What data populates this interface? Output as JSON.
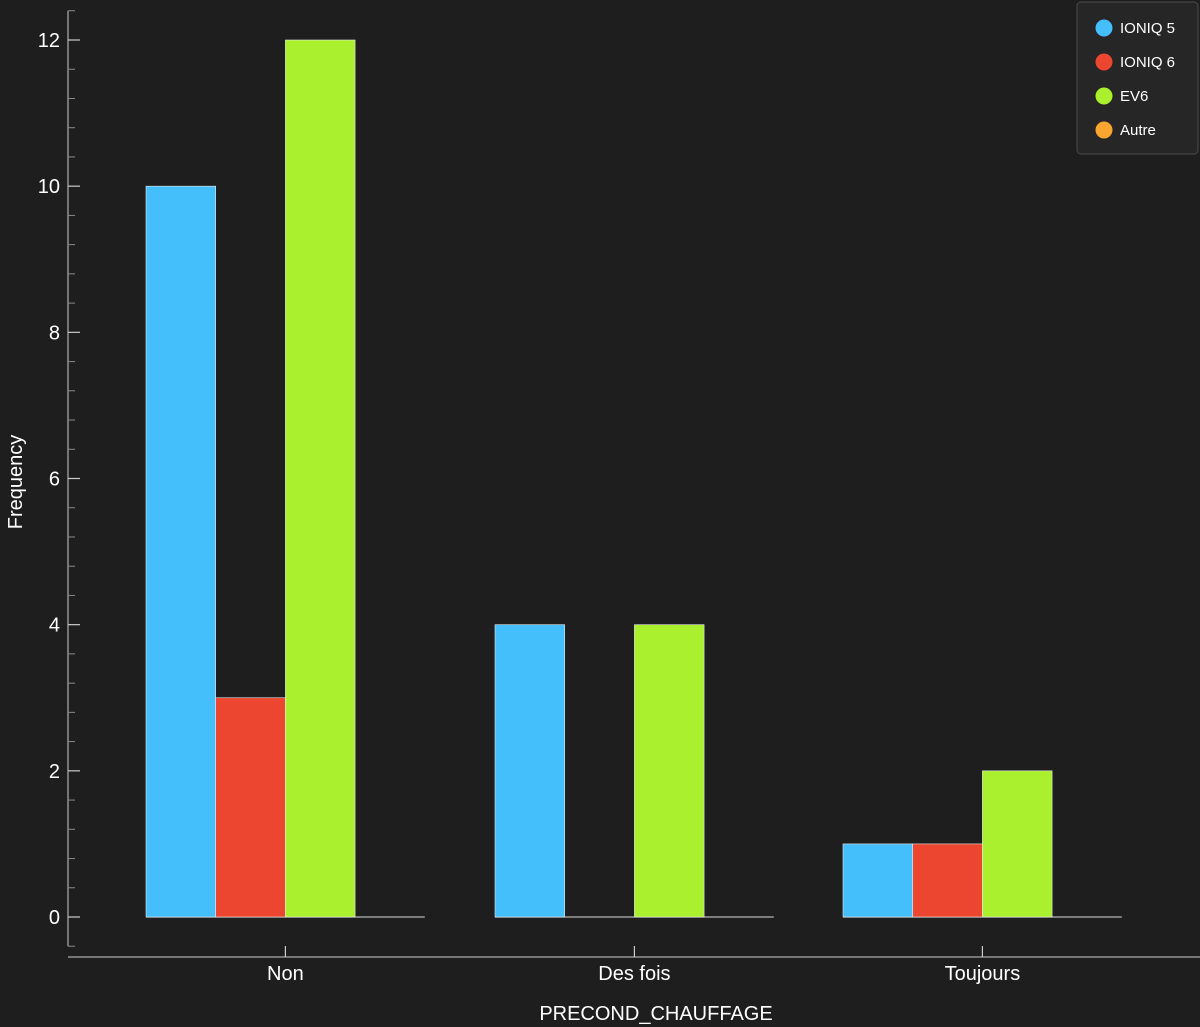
{
  "chart_data": {
    "type": "bar",
    "title": "",
    "xlabel": "PRECOND_CHAUFFAGE",
    "ylabel": "Frequency",
    "categories": [
      "Non",
      "Des fois",
      "Toujours"
    ],
    "series": [
      {
        "name": "IONIQ 5",
        "color": "#45bffb",
        "values": [
          10,
          4,
          1
        ]
      },
      {
        "name": "IONIQ 6",
        "color": "#ec4530",
        "values": [
          3,
          0,
          1
        ]
      },
      {
        "name": "EV6",
        "color": "#aaf02e",
        "values": [
          12,
          4,
          2
        ]
      },
      {
        "name": "Autre",
        "color": "#f8a630",
        "values": [
          0,
          0,
          0
        ]
      }
    ],
    "yticks": [
      0,
      2,
      4,
      6,
      8,
      10,
      12
    ],
    "ylim": [
      -0.4,
      12.4
    ],
    "grid": false,
    "legend_position": "top-right",
    "background": "#1e1e1e",
    "axis_color": "#cccccc"
  }
}
